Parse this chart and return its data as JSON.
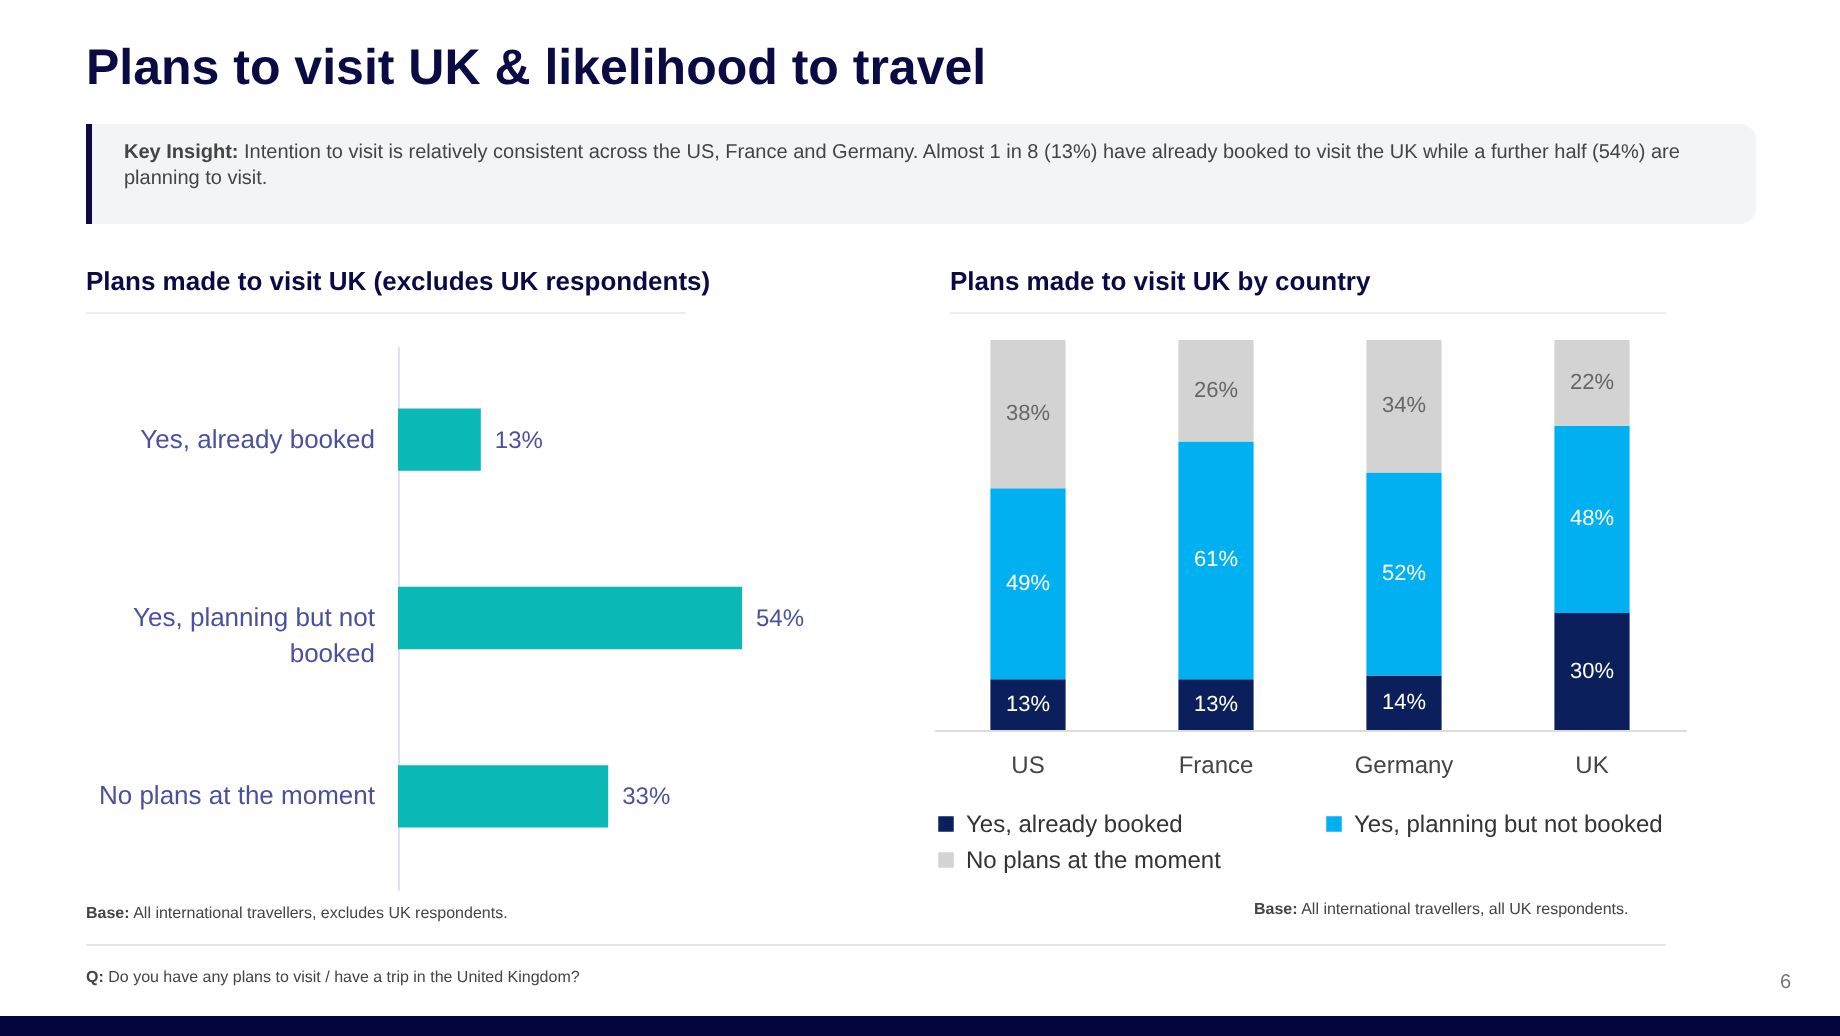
{
  "chart_data": [
    {
      "type": "bar",
      "orientation": "horizontal",
      "title": "Plans made to visit UK (excludes UK respondents)",
      "categories": [
        "Yes, already booked",
        "Yes, planning but not booked",
        "No plans at the moment"
      ],
      "values": [
        13,
        54,
        33
      ],
      "value_labels": [
        "13%",
        "54%",
        "33%"
      ],
      "color": "#0ab9b5",
      "legend": false,
      "grid": false,
      "annotations": [
        "Plans to visit UK & likelihood to travel",
        "Key Insight: Intention to visit is relatively consistent across the US, France and Germany. Almost 1 in 8 (13%) have already booked to visit the UK while a further half (54%) are planning to visit.",
        "Base: All international travellers, excludes UK respondents.",
        "Q: Do you have any plans to visit / have a trip in the United Kingdom?",
        "6"
      ]
    },
    {
      "type": "bar",
      "stacked": true,
      "title": "Plans made to visit UK by country",
      "categories": [
        "US",
        "France",
        "Germany",
        "UK"
      ],
      "series": [
        {
          "name": "Yes, already booked",
          "color": "#0b1f5c",
          "values": [
            13,
            13,
            14,
            30
          ],
          "value_labels": [
            "13%",
            "13%",
            "14%",
            "30%"
          ]
        },
        {
          "name": "Yes, planning but not booked",
          "color": "#00b0f0",
          "values": [
            49,
            61,
            52,
            48
          ],
          "value_labels": [
            "49%",
            "61%",
            "52%",
            "48%"
          ]
        },
        {
          "name": "No plans at the moment",
          "color": "#d3d3d3",
          "values": [
            38,
            26,
            34,
            22
          ],
          "value_labels": [
            "38%",
            "26%",
            "34%",
            "22%"
          ]
        }
      ],
      "legend": "bottom",
      "grid": false,
      "annotations": [
        "Base: All international travellers, all UK respondents."
      ]
    }
  ]
}
